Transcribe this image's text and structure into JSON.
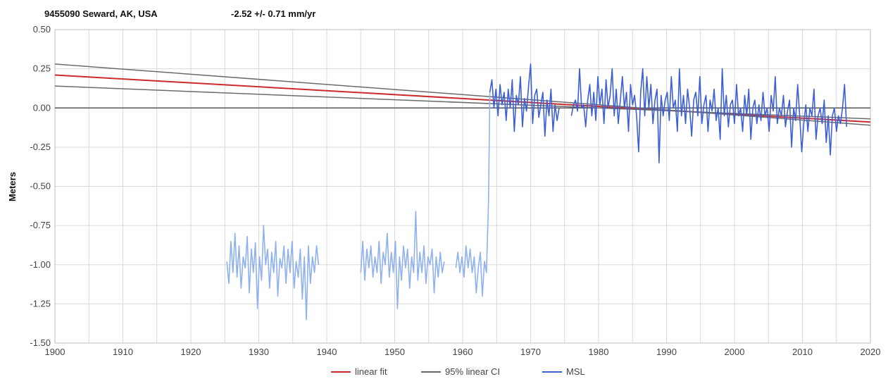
{
  "header": {
    "station": "9455090 Seward, AK, USA",
    "trend": "-2.52 +/- 0.71 mm/yr"
  },
  "colors": {
    "linear_fit": "#cc2b2b",
    "ci": "#6b6b6b",
    "msl_recent": "#3d5fd6",
    "msl_early": "#8fb1ef",
    "grid": "#d9d9d9",
    "zero_line": "#555555"
  },
  "chart_data": {
    "type": "line",
    "title": "9455090 Seward, AK, USA",
    "subtitle": "-2.52 +/- 0.71 mm/yr",
    "xlabel": "",
    "ylabel": "Meters",
    "xlim": [
      1900,
      2020
    ],
    "ylim": [
      -1.5,
      0.5
    ],
    "x_ticks": [
      1900,
      1910,
      1920,
      1930,
      1940,
      1950,
      1960,
      1970,
      1980,
      1990,
      2000,
      2010,
      2020
    ],
    "y_ticks": [
      "-1.50",
      "-1.25",
      "-1.00",
      "-0.75",
      "-0.50",
      "-0.25",
      "0.00",
      "0.25",
      "0.50"
    ],
    "grid": true,
    "legend_position": "bottom",
    "legend": [
      "linear fit",
      "95% linear CI",
      "MSL"
    ],
    "series": [
      {
        "name": "linear fit",
        "x": [
          1900,
          2020
        ],
        "y": [
          0.21,
          -0.09
        ]
      },
      {
        "name": "95% linear CI",
        "x": [
          1900,
          2020
        ],
        "y": [
          0.28,
          -0.11
        ]
      },
      {
        "name": "95% linear CI",
        "x": [
          1900,
          2020
        ],
        "y": [
          0.14,
          -0.07
        ]
      },
      {
        "name": "MSL",
        "segments": [
          {
            "x": [
              1925.3,
              1925.6,
              1925.9,
              1926.2,
              1926.5,
              1926.8,
              1927.1,
              1927.4,
              1927.7,
              1928.0,
              1928.3,
              1928.6,
              1928.9,
              1929.2,
              1929.5,
              1929.8,
              1930.1,
              1930.4,
              1930.7,
              1931.0,
              1931.3,
              1931.6,
              1931.9,
              1932.2,
              1932.5,
              1932.8,
              1933.1,
              1933.4,
              1933.7,
              1934.0,
              1934.3,
              1934.6,
              1934.9,
              1935.2,
              1935.5,
              1935.8,
              1936.1,
              1936.4,
              1936.7,
              1937.0,
              1937.3,
              1937.6,
              1937.9,
              1938.2,
              1938.5,
              1938.8
            ],
            "y": [
              -0.98,
              -1.12,
              -0.85,
              -1.05,
              -0.8,
              -1.08,
              -0.88,
              -1.15,
              -0.95,
              -1.02,
              -0.82,
              -1.18,
              -0.9,
              -1.05,
              -0.86,
              -1.28,
              -0.95,
              -1.1,
              -0.75,
              -1.0,
              -0.9,
              -1.15,
              -0.92,
              -1.05,
              -0.85,
              -1.2,
              -0.96,
              -1.02,
              -0.88,
              -1.12,
              -0.9,
              -1.05,
              -0.85,
              -1.15,
              -0.98,
              -1.08,
              -0.9,
              -1.22,
              -0.95,
              -1.35,
              -0.88,
              -1.12,
              -0.95,
              -1.05,
              -0.88,
              -1.0
            ]
          },
          {
            "x": [
              1945.0,
              1945.3,
              1945.6,
              1945.9,
              1946.2,
              1946.5,
              1946.8,
              1947.1,
              1947.4,
              1947.7,
              1948.0,
              1948.3,
              1948.6,
              1948.9,
              1949.2,
              1949.5,
              1949.8,
              1950.1,
              1950.4,
              1950.7,
              1951.0,
              1951.3,
              1951.6,
              1951.9,
              1952.2,
              1952.5,
              1952.8,
              1953.1,
              1953.4,
              1953.7,
              1954.0,
              1954.3,
              1954.6,
              1954.9,
              1955.2,
              1955.5,
              1955.8,
              1956.1,
              1956.4,
              1956.7,
              1957.0,
              1957.3
            ],
            "y": [
              -1.05,
              -0.85,
              -1.1,
              -0.9,
              -1.02,
              -0.88,
              -1.08,
              -0.95,
              -1.05,
              -0.85,
              -1.12,
              -0.92,
              -1.0,
              -0.8,
              -1.08,
              -0.92,
              -1.05,
              -0.85,
              -1.28,
              -0.95,
              -1.1,
              -0.88,
              -1.02,
              -0.9,
              -1.15,
              -0.95,
              -1.05,
              -0.66,
              -1.1,
              -0.92,
              -1.05,
              -0.88,
              -1.12,
              -0.95,
              -1.0,
              -0.9,
              -1.18,
              -0.95,
              -1.08,
              -0.92,
              -1.05,
              -0.98
            ]
          },
          {
            "x": [
              1959.0,
              1959.3,
              1959.6,
              1959.9,
              1960.2,
              1960.5,
              1960.8,
              1961.1,
              1961.4,
              1961.7,
              1962.0,
              1962.3,
              1962.6,
              1962.9,
              1963.2,
              1963.5,
              1963.8,
              1964.0
            ],
            "y": [
              -1.02,
              -0.92,
              -1.05,
              -0.95,
              -1.08,
              -0.88,
              -1.02,
              -0.9,
              -1.05,
              -0.95,
              -1.18,
              -1.02,
              -0.92,
              -1.2,
              -0.98,
              -1.05,
              -0.6,
              0.1
            ]
          },
          {
            "x": [
              1964.0,
              1964.3,
              1964.6,
              1964.9,
              1965.2,
              1965.5,
              1965.8,
              1966.1,
              1966.4,
              1966.7,
              1967.0,
              1967.3,
              1967.6,
              1967.9,
              1968.2,
              1968.5,
              1968.8,
              1969.1,
              1969.4,
              1969.7,
              1970.0,
              1970.3,
              1970.6,
              1970.9,
              1971.2,
              1971.5,
              1971.8,
              1972.1,
              1972.4,
              1972.7,
              1973.0,
              1973.3,
              1973.6,
              1973.9,
              1974.2
            ],
            "y": [
              0.1,
              0.18,
              0.0,
              0.12,
              -0.05,
              0.15,
              0.02,
              0.1,
              -0.08,
              0.12,
              0.0,
              0.18,
              -0.15,
              0.08,
              0.02,
              0.2,
              -0.12,
              0.06,
              -0.02,
              0.14,
              0.28,
              -0.1,
              0.08,
              0.12,
              -0.06,
              0.02,
              0.1,
              -0.18,
              0.05,
              -0.05,
              0.12,
              -0.15,
              0.02,
              -0.08,
              0.0
            ]
          },
          {
            "x": [
              1976.0,
              1976.3,
              1976.6,
              1976.9,
              1977.2,
              1977.5,
              1977.8,
              1978.1,
              1978.4,
              1978.7,
              1979.0,
              1979.3,
              1979.6,
              1979.9,
              1980.2,
              1980.5,
              1980.8,
              1981.1,
              1981.4,
              1981.7,
              1982.0,
              1982.3,
              1982.6,
              1982.9,
              1983.2,
              1983.5,
              1983.8,
              1984.1,
              1984.4,
              1984.7,
              1985.0,
              1985.3,
              1985.6,
              1985.9,
              1986.2,
              1986.5,
              1986.8,
              1987.1,
              1987.4,
              1987.7,
              1988.0,
              1988.3,
              1988.6,
              1988.9,
              1989.2,
              1989.5,
              1989.8,
              1990.1,
              1990.4,
              1990.7,
              1991.0,
              1991.3,
              1991.6,
              1991.9,
              1992.2,
              1992.5,
              1992.8,
              1993.1,
              1993.4,
              1993.7,
              1994.0,
              1994.3,
              1994.6,
              1994.9,
              1995.2,
              1995.5,
              1995.8,
              1996.1,
              1996.4,
              1996.7,
              1997.0,
              1997.3,
              1997.6,
              1997.9,
              1998.2,
              1998.5,
              1998.8,
              1999.1,
              1999.4,
              1999.7,
              2000.0,
              2000.3,
              2000.6,
              2000.9,
              2001.2,
              2001.5,
              2001.8,
              2002.1,
              2002.4,
              2002.7,
              2003.0,
              2003.3,
              2003.6,
              2003.9,
              2004.2,
              2004.5,
              2004.8,
              2005.1,
              2005.4,
              2005.7,
              2006.0,
              2006.3,
              2006.6,
              2006.9,
              2007.2,
              2007.5,
              2007.8,
              2008.1,
              2008.4,
              2008.7,
              2009.0,
              2009.3,
              2009.6,
              2009.9,
              2010.2,
              2010.5,
              2010.8,
              2011.1,
              2011.4,
              2011.7,
              2012.0,
              2012.3,
              2012.6,
              2012.9,
              2013.2,
              2013.5,
              2013.8,
              2014.1,
              2014.4,
              2014.7,
              2015.0,
              2015.3,
              2015.6,
              2015.9,
              2016.2,
              2016.5
            ],
            "y": [
              -0.05,
              0.02,
              0.05,
              -0.02,
              0.25,
              0.0,
              0.02,
              -0.12,
              0.05,
              0.15,
              -0.05,
              0.1,
              -0.08,
              0.2,
              0.02,
              0.12,
              -0.1,
              0.18,
              0.0,
              0.08,
              0.25,
              -0.05,
              0.12,
              -0.1,
              0.05,
              0.2,
              0.0,
              0.1,
              -0.15,
              0.15,
              0.02,
              0.08,
              -0.05,
              -0.28,
              0.1,
              0.25,
              -0.05,
              0.2,
              0.0,
              0.15,
              -0.1,
              0.05,
              0.12,
              -0.35,
              0.08,
              -0.05,
              0.05,
              0.1,
              -0.08,
              0.2,
              0.0,
              0.05,
              -0.15,
              0.25,
              -0.05,
              0.08,
              -0.1,
              0.12,
              0.0,
              -0.18,
              0.05,
              0.1,
              -0.05,
              0.2,
              -0.1,
              0.02,
              0.08,
              -0.15,
              0.05,
              -0.02,
              0.12,
              -0.08,
              0.0,
              -0.2,
              0.25,
              -0.05,
              0.08,
              -0.12,
              0.02,
              0.05,
              -0.1,
              0.15,
              -0.05,
              0.0,
              -0.15,
              0.08,
              -0.05,
              0.12,
              -0.2,
              0.0,
              0.05,
              -0.1,
              0.02,
              -0.08,
              0.1,
              -0.05,
              0.0,
              -0.15,
              0.08,
              -0.02,
              0.2,
              -0.1,
              0.0,
              -0.05,
              0.08,
              -0.12,
              -0.02,
              0.05,
              -0.25,
              0.0,
              -0.08,
              0.15,
              -0.05,
              -0.28,
              -0.1,
              0.02,
              -0.15,
              0.0,
              -0.05,
              0.12,
              -0.2,
              -0.05,
              0.0,
              -0.1,
              0.05,
              -0.22,
              -0.05,
              -0.3,
              -0.05,
              0.0,
              -0.15,
              -0.05,
              -0.1,
              0.0,
              0.15,
              -0.12
            ]
          }
        ]
      }
    ]
  }
}
